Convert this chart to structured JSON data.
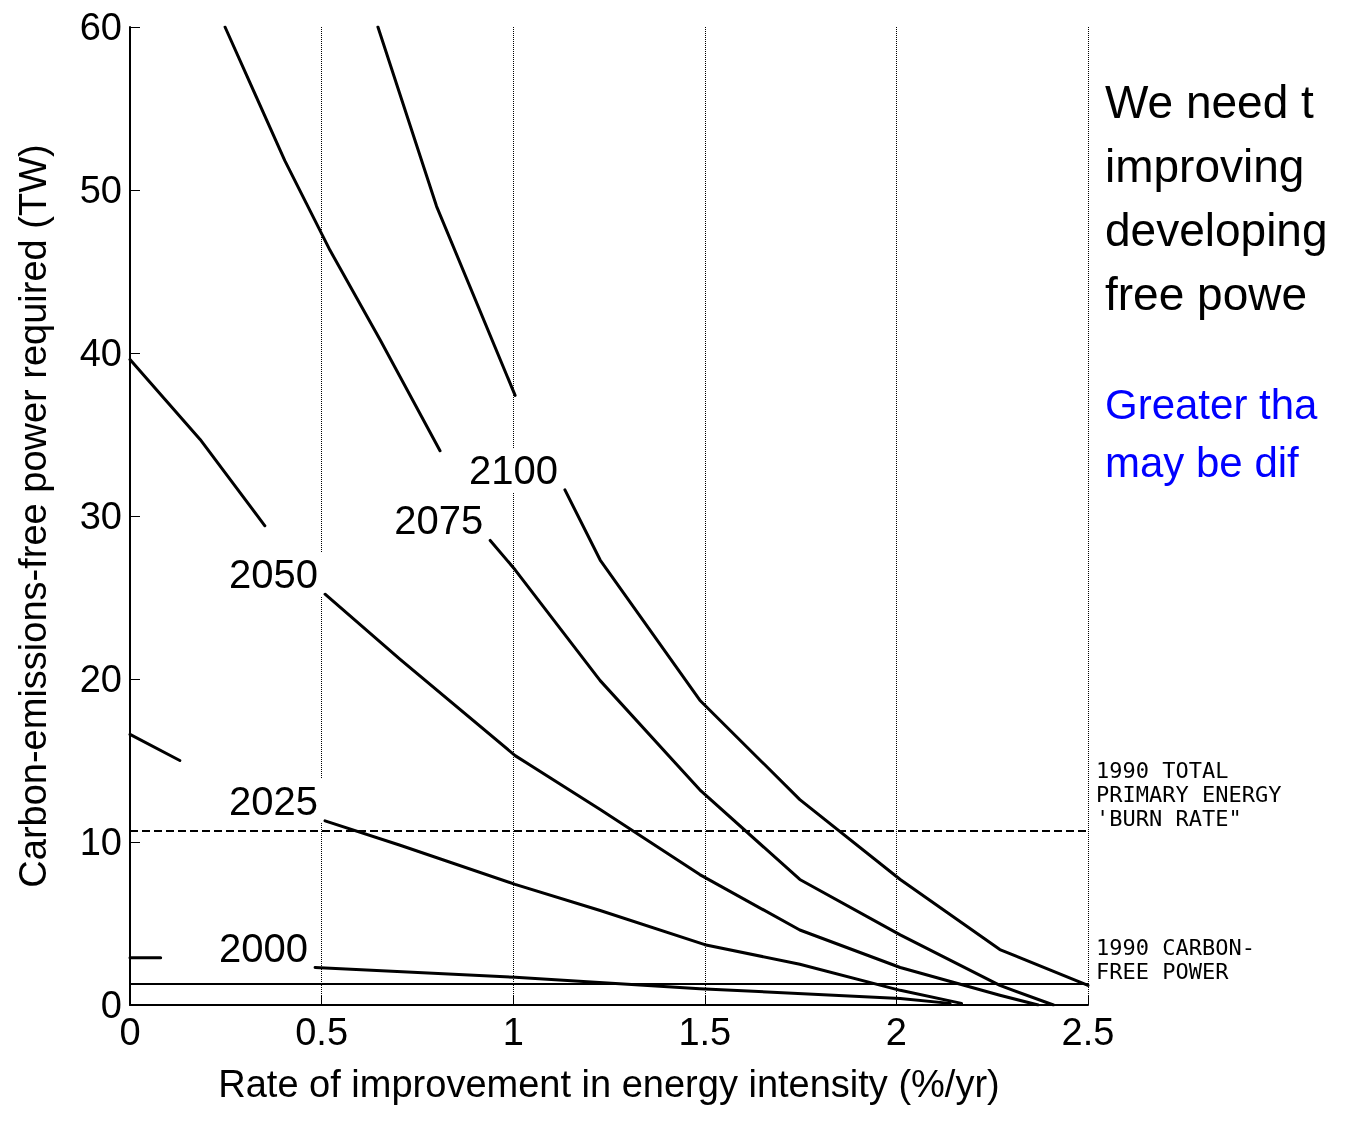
{
  "chart_data": {
    "type": "line",
    "xlabel": "Rate of improvement in energy intensity (%/yr)",
    "ylabel": "Carbon-emissions-free power required (TW)",
    "xlim": [
      0,
      2.5
    ],
    "xticks": [
      0,
      0.5,
      1,
      1.5,
      2,
      2.5
    ],
    "ylim": [
      0,
      60
    ],
    "yticks": [
      0,
      10,
      20,
      30,
      40,
      50,
      60
    ],
    "grid": "x",
    "marker": "none",
    "line_style": "solid",
    "legend": false,
    "series": [
      {
        "name": "2000",
        "color": "#000000",
        "x": [
          0,
          0.08,
          0.3,
          0.483,
          1.005,
          1.487,
          2.01,
          2.14
        ],
        "values": [
          2.9,
          2.9,
          null,
          2.3,
          1.7,
          1.0,
          0.4,
          0.1
        ]
      },
      {
        "name": "2025",
        "color": "#000000",
        "x": [
          0,
          0.13,
          0.3,
          0.509,
          0.705,
          1.005,
          1.227,
          1.5,
          1.748,
          2.01,
          2.17
        ],
        "values": [
          16.6,
          15.0,
          null,
          11.3,
          9.8,
          7.4,
          5.8,
          3.7,
          2.5,
          0.9,
          0.1
        ]
      },
      {
        "name": "2050",
        "color": "#000000",
        "x": [
          0,
          0.183,
          0.352,
          0.4,
          0.509,
          0.705,
          1.005,
          1.227,
          1.487,
          1.748,
          2.01,
          2.27,
          2.37
        ],
        "values": [
          39.6,
          34.7,
          29.4,
          null,
          25.2,
          21.2,
          15.3,
          12,
          8,
          4.6,
          2.3,
          0.6,
          0
        ]
      },
      {
        "name": "2075",
        "color": "#000000",
        "x": [
          0.248,
          0.404,
          0.522,
          0.653,
          0.809,
          0.85,
          0.94,
          1.005,
          1.227,
          1.487,
          1.748,
          2.01,
          2.27,
          2.41
        ],
        "values": [
          60,
          51.8,
          46.3,
          40.8,
          34,
          null,
          28.5,
          26.7,
          19.9,
          13.2,
          7.7,
          4.3,
          1.2,
          0
        ]
      },
      {
        "name": "2100",
        "color": "#000000",
        "x": [
          0.647,
          0.8,
          1.005,
          1.05,
          1.135,
          1.227,
          1.487,
          1.748,
          2.01,
          2.27,
          2.5
        ],
        "values": [
          60,
          49,
          37.4,
          null,
          31.6,
          27.3,
          18.7,
          12.6,
          7.7,
          3.4,
          1.2
        ]
      }
    ],
    "ref_lines": [
      {
        "axis": "y",
        "value": 10.7,
        "label": "1990 TOTAL\nPRIMARY ENERGY\n'BURN RATE\"",
        "line_style": "dashed",
        "color": "#000000"
      },
      {
        "axis": "y",
        "value": 1.3,
        "label": "1990 CARBON-\nFREE POWER",
        "line_style": "solid",
        "color": "#000000"
      }
    ],
    "annotations": [
      "We need t\nimproving\ndeveloping\nfree powe",
      "Greater tha\nmay be dif"
    ]
  }
}
